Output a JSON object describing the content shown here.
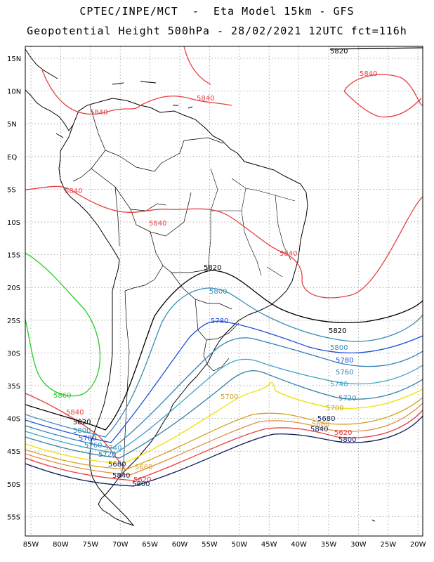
{
  "header": {
    "line1": "CPTEC/INPE/MCT  -  Eta Model 15km - GFS",
    "line2": "Geopotential Height 500hPa - 28/02/2021 12UTC fct=116h"
  },
  "axes": {
    "lat_labels": [
      "15N",
      "10N",
      "5N",
      "EQ",
      "5S",
      "10S",
      "15S",
      "20S",
      "25S",
      "30S",
      "35S",
      "40S",
      "45S",
      "50S",
      "55S"
    ],
    "lon_labels": [
      "85W",
      "80W",
      "75W",
      "70W",
      "65W",
      "60W",
      "55W",
      "50W",
      "45W",
      "40W",
      "35W",
      "30W",
      "25W",
      "20W"
    ]
  },
  "contour_labels": {
    "l5820_a": "5820",
    "l5820_b": "5820",
    "l5820_c": "5820",
    "l5820_d": "5820",
    "l5840_a": "5840",
    "l5840_b": "5840",
    "l5840_c": "5840",
    "l5840_d": "5840",
    "l5840_e": "5840",
    "l5840_f": "5840",
    "l5840_g": "5840",
    "l5840_h": "5840",
    "l5840_i": "5840",
    "l5860": "5860",
    "l5800_a": "5800",
    "l5800_b": "5800",
    "l5800_c": "5800",
    "l5800_d": "5800",
    "l5800_e": "5800",
    "l5780_a": "5780",
    "l5780_b": "5780",
    "l5780_c": "5780",
    "l5760_a": "5760",
    "l5760_b": "5760",
    "l5740_a": "5740",
    "l5740_b": "5740",
    "l5720_a": "5720",
    "l5720_b": "5720",
    "l5700_a": "5700",
    "l5700_b": "5700",
    "l5680_a": "5680",
    "l5680_b": "5680",
    "l5660_a": "5660",
    "l5660_b": "5660",
    "l5620_a": "5620",
    "l5620_b": "5620"
  },
  "colors": {
    "c5860": "#22cc22",
    "c5840": "#e84040",
    "c5820": "#000000",
    "c5800": "#3b8fb5",
    "c5780": "#1e4fd8",
    "c5760": "#2f82b8",
    "c5740": "#3ea2c8",
    "c5720": "#2d7fa8",
    "c5700": "#f0e000",
    "c5680": "#d4a020",
    "c5660": "#e09040",
    "c5620": "#e84040",
    "c5600": "#0a1a5a",
    "coast": "#000000",
    "grid": "#999999"
  }
}
